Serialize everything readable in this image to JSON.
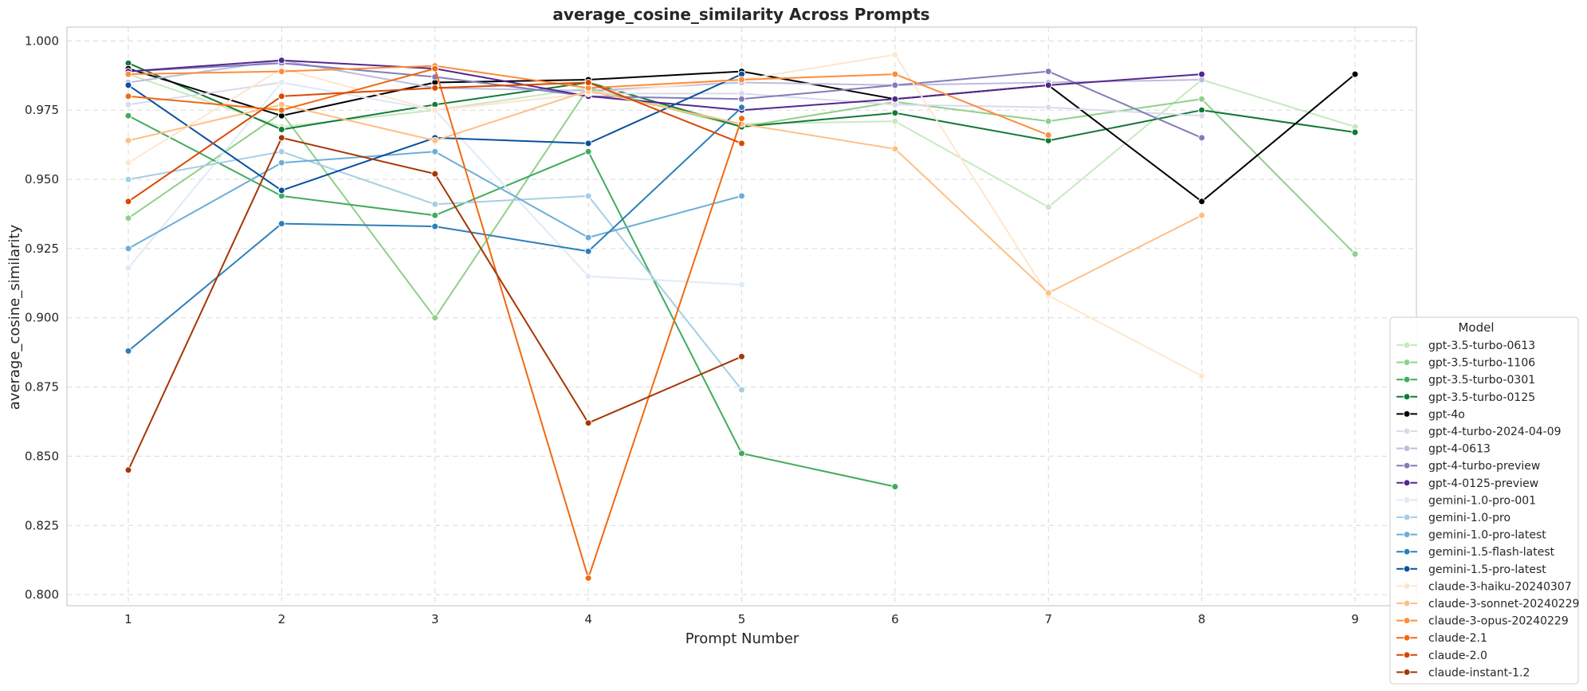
{
  "chart_data": {
    "type": "line",
    "title": "average_cosine_similarity Across Prompts",
    "xlabel": "Prompt Number",
    "ylabel": "average_cosine_similarity",
    "x_ticks": [
      1,
      2,
      3,
      4,
      5,
      6,
      7,
      8,
      9
    ],
    "y_ticks": [
      0.8,
      0.825,
      0.85,
      0.875,
      0.9,
      0.925,
      0.95,
      0.975,
      1.0
    ],
    "y_tick_labels": [
      "0.800",
      "0.825",
      "0.850",
      "0.875",
      "0.900",
      "0.925",
      "0.950",
      "0.975",
      "1.000"
    ],
    "xlim": [
      0.6,
      9.4
    ],
    "ylim": [
      0.796,
      1.005
    ],
    "grid": true,
    "legend_title": "Model",
    "legend_position": "lower-right",
    "series": [
      {
        "name": "gpt-3.5-turbo-0613",
        "color": "#c7e9c0",
        "x": [
          1,
          2,
          3,
          4,
          5,
          6,
          7,
          8,
          9
        ],
        "y": [
          0.988,
          0.969,
          0.975,
          0.983,
          0.97,
          0.971,
          0.94,
          0.986,
          0.969
        ]
      },
      {
        "name": "gpt-3.5-turbo-1106",
        "color": "#8fd08a",
        "x": [
          1,
          2,
          3,
          4,
          5,
          6,
          7,
          8,
          9
        ],
        "y": [
          0.936,
          0.974,
          0.9,
          0.983,
          0.969,
          0.978,
          0.971,
          0.979,
          0.923
        ]
      },
      {
        "name": "gpt-3.5-turbo-0301",
        "color": "#41ab5d",
        "x": [
          1,
          2,
          3,
          4,
          5,
          6
        ],
        "y": [
          0.973,
          0.944,
          0.937,
          0.96,
          0.851,
          0.839
        ]
      },
      {
        "name": "gpt-3.5-turbo-0125",
        "color": "#117a37",
        "x": [
          1,
          2,
          3,
          4,
          5,
          6,
          7,
          8,
          9
        ],
        "y": [
          0.992,
          0.968,
          0.977,
          0.985,
          0.969,
          0.974,
          0.964,
          0.975,
          0.967
        ]
      },
      {
        "name": "gpt-4o",
        "color": "#000000",
        "x": [
          1,
          2,
          3,
          4,
          5,
          6,
          7,
          8,
          9
        ],
        "y": [
          0.99,
          0.973,
          0.985,
          0.986,
          0.989,
          0.979,
          0.984,
          0.942,
          0.988
        ]
      },
      {
        "name": "gpt-4-turbo-2024-04-09",
        "color": "#dadaeb",
        "x": [
          1,
          2,
          3,
          4,
          5,
          6,
          7,
          8
        ],
        "y": [
          0.977,
          0.985,
          0.975,
          0.981,
          0.981,
          0.977,
          0.976,
          0.973
        ]
      },
      {
        "name": "gpt-4-0613",
        "color": "#bcbddc",
        "x": [
          1,
          2,
          3,
          4,
          5,
          6,
          7,
          8
        ],
        "y": [
          0.985,
          0.993,
          0.983,
          0.982,
          0.985,
          0.984,
          0.985,
          0.986
        ]
      },
      {
        "name": "gpt-4-turbo-preview",
        "color": "#807dba",
        "x": [
          1,
          2,
          3,
          4,
          5,
          6,
          7,
          8
        ],
        "y": [
          0.989,
          0.992,
          0.987,
          0.98,
          0.979,
          0.984,
          0.989,
          0.965
        ]
      },
      {
        "name": "gpt-4-0125-preview",
        "color": "#54278f",
        "x": [
          1,
          2,
          3,
          4,
          5,
          6,
          7,
          8
        ],
        "y": [
          0.989,
          0.993,
          0.99,
          0.98,
          0.975,
          0.979,
          0.984,
          0.988
        ]
      },
      {
        "name": "gemini-1.0-pro-001",
        "color": "#deebf7",
        "x": [
          1,
          2,
          3,
          4,
          5
        ],
        "y": [
          0.918,
          0.985,
          0.975,
          0.915,
          0.912
        ]
      },
      {
        "name": "gemini-1.0-pro",
        "color": "#a6cee3",
        "x": [
          1,
          2,
          3,
          4,
          5
        ],
        "y": [
          0.95,
          0.96,
          0.941,
          0.944,
          0.874
        ]
      },
      {
        "name": "gemini-1.0-pro-latest",
        "color": "#6baed6",
        "x": [
          1,
          2,
          3,
          4,
          5
        ],
        "y": [
          0.925,
          0.956,
          0.96,
          0.929,
          0.944
        ]
      },
      {
        "name": "gemini-1.5-flash-latest",
        "color": "#2c7fb8",
        "x": [
          1,
          2,
          3,
          4,
          5
        ],
        "y": [
          0.888,
          0.934,
          0.933,
          0.924,
          0.976
        ]
      },
      {
        "name": "gemini-1.5-pro-latest",
        "color": "#08519c",
        "x": [
          1,
          2,
          3,
          4,
          5
        ],
        "y": [
          0.984,
          0.946,
          0.965,
          0.963,
          0.988
        ]
      },
      {
        "name": "claude-3-haiku-20240307",
        "color": "#fee6ce",
        "x": [
          1,
          2,
          3,
          4,
          5,
          6,
          7,
          8
        ],
        "y": [
          0.956,
          0.99,
          0.975,
          0.981,
          0.986,
          0.995,
          0.908,
          0.879
        ]
      },
      {
        "name": "claude-3-sonnet-20240229",
        "color": "#fdc086",
        "x": [
          1,
          2,
          3,
          4,
          5,
          6,
          7,
          8
        ],
        "y": [
          0.964,
          0.977,
          0.964,
          0.982,
          0.97,
          0.961,
          0.909,
          0.937
        ]
      },
      {
        "name": "claude-3-opus-20240229",
        "color": "#fd8d3c",
        "x": [
          1,
          2,
          3,
          4,
          5,
          6,
          7
        ],
        "y": [
          0.988,
          0.989,
          0.991,
          0.983,
          0.986,
          0.988,
          0.966
        ]
      },
      {
        "name": "claude-2.1",
        "color": "#f16913",
        "x": [
          1,
          2,
          3,
          4,
          5
        ],
        "y": [
          0.98,
          0.975,
          0.99,
          0.806,
          0.972
        ]
      },
      {
        "name": "claude-2.0",
        "color": "#d94801",
        "x": [
          1,
          2,
          3,
          4,
          5
        ],
        "y": [
          0.942,
          0.98,
          0.983,
          0.985,
          0.963
        ]
      },
      {
        "name": "claude-instant-1.2",
        "color": "#a63603",
        "x": [
          1,
          2,
          3,
          4,
          5
        ],
        "y": [
          0.845,
          0.965,
          0.952,
          0.862,
          0.886
        ]
      }
    ]
  }
}
